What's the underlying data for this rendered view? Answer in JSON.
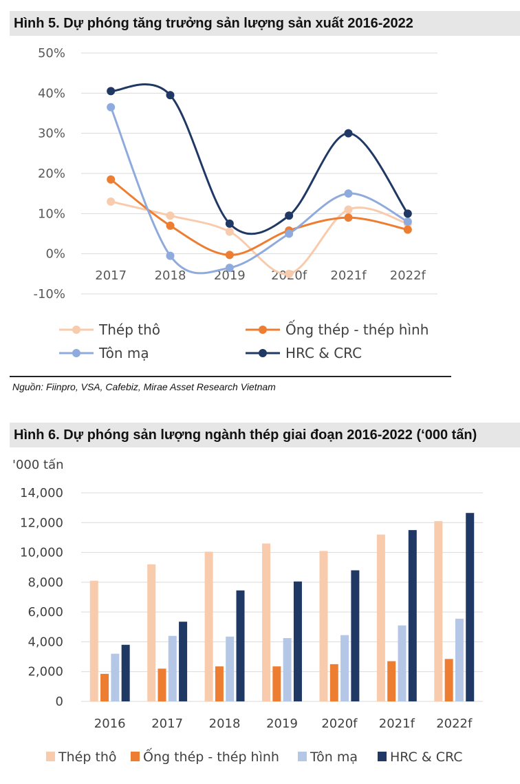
{
  "figure1": {
    "title": "Hình 5. Dự phóng tăng trưởng sản lượng sản xuất 2016-2022",
    "source": "Nguồn: Fiinpro, VSA, Cafebiz, Mirae Asset Research Vietnam"
  },
  "figure2": {
    "title": "Hình 6. Dự phóng sản lượng ngành thép giai đoạn 2016-2022 (‘000 tấn)",
    "unit_label": "'000 tấn"
  },
  "chart_data": [
    {
      "type": "line",
      "title": "Hình 5. Dự phóng tăng trưởng sản lượng sản xuất 2016-2022",
      "categories": [
        "2017",
        "2018",
        "2019",
        "2020f",
        "2021f",
        "2022f"
      ],
      "y_ticks": [
        "50%",
        "40%",
        "30%",
        "20%",
        "10%",
        "0%",
        "-10%"
      ],
      "ylim": [
        -10,
        50
      ],
      "grid": true,
      "legend": "bottom",
      "series": [
        {
          "name": "Thép thô",
          "color": "#f8cbad",
          "values": [
            13,
            9.5,
            5.5,
            -5,
            11,
            7.5
          ]
        },
        {
          "name": "Ống thép - thép hình",
          "color": "#ed7d31",
          "values": [
            18.5,
            7,
            -0.3,
            5.8,
            9,
            6
          ]
        },
        {
          "name": "Tôn mạ",
          "color": "#8faadc",
          "values": [
            36.5,
            -0.5,
            -3.5,
            5,
            15,
            8
          ]
        },
        {
          "name": "HRC & CRC",
          "color": "#203864",
          "values": [
            40.5,
            39.5,
            7.5,
            9.5,
            30,
            10
          ]
        }
      ]
    },
    {
      "type": "bar",
      "title": "Hình 6. Dự phóng sản lượng ngành thép giai đoạn 2016-2022 (‘000 tấn)",
      "ylabel": "'000 tấn",
      "categories": [
        "2016",
        "2017",
        "2018",
        "2019",
        "2020f",
        "2021f",
        "2022f"
      ],
      "y_ticks": [
        "14,000",
        "12,000",
        "10,000",
        "8,000",
        "6,000",
        "4,000",
        "2,000",
        "0"
      ],
      "ylim": [
        0,
        14000
      ],
      "grid": true,
      "legend": "bottom",
      "series": [
        {
          "name": "Thép thô",
          "color": "#f8cbad",
          "values": [
            8100,
            9200,
            10050,
            10600,
            10100,
            11200,
            12100
          ]
        },
        {
          "name": "Ống thép - thép hình",
          "color": "#ed7d31",
          "values": [
            1850,
            2200,
            2350,
            2350,
            2500,
            2700,
            2850
          ]
        },
        {
          "name": "Tôn mạ",
          "color": "#b4c7e7",
          "values": [
            3200,
            4400,
            4350,
            4250,
            4450,
            5100,
            5550
          ]
        },
        {
          "name": "HRC & CRC",
          "color": "#203864",
          "values": [
            3800,
            5350,
            7450,
            8050,
            8800,
            11500,
            12650
          ]
        }
      ]
    }
  ]
}
